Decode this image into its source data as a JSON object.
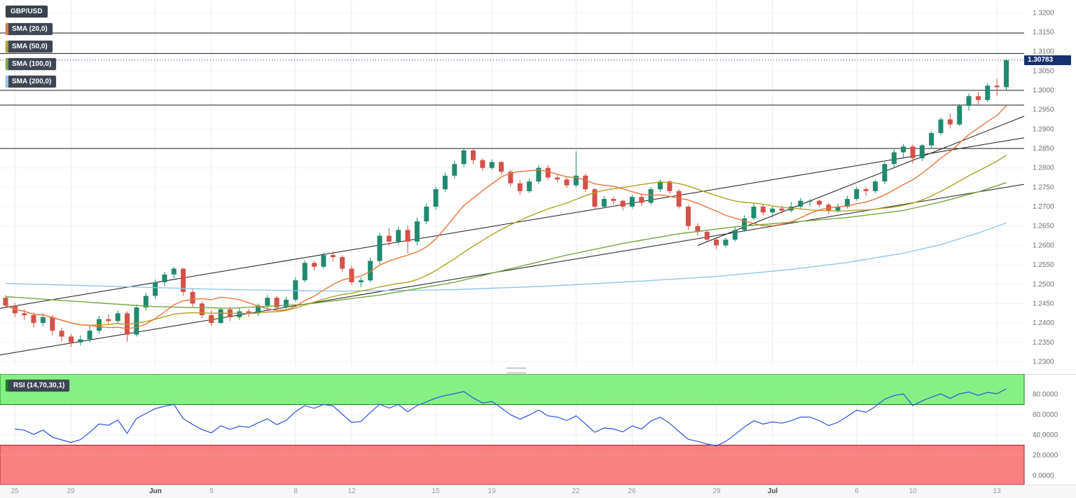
{
  "legend": {
    "symbol": "GBP/USD",
    "smas": [
      {
        "label": "SMA (20,0)",
        "color_key": "sma20"
      },
      {
        "label": "SMA (50,0)",
        "color_key": "sma50"
      },
      {
        "label": "SMA (100,0)",
        "color_key": "sma100"
      },
      {
        "label": "SMA (200,0)",
        "color_key": "sma200"
      }
    ],
    "rsi_label": "RSI (14,70,30,1)"
  },
  "colors": {
    "up": "#1f8a70",
    "down": "#d6504a",
    "sma20": "#e8763a",
    "sma50": "#b3a021",
    "sma100": "#71a83c",
    "sma200": "#8ec7ee",
    "rsi": "#2a52d8",
    "trendline": "#1a1a1a",
    "grid_h": "#f3f3f3",
    "grid_v": "#ebebeb",
    "axis_text": "#6e6e6e",
    "price_tag_bg": "#16316e",
    "band_green": "#70ee70",
    "band_green_border": "#118a11",
    "band_red": "#f96b6b",
    "band_red_border": "#b01d1d",
    "rsi_level_dots": "#c0c0c0"
  },
  "chart_data": [
    {
      "type": "candlestick",
      "title": "GBP/USD",
      "last_price": 1.30783,
      "last_price_label": "1.30783",
      "y_axis": {
        "max": 1.3233,
        "min": 1.229,
        "ticks": [
          "1.3200",
          "1.3150",
          "1.3100",
          "1.3050",
          "1.3000",
          "1.2950",
          "1.2900",
          "1.2850",
          "1.2800",
          "1.2750",
          "1.2700",
          "1.2650",
          "1.2600",
          "1.2550",
          "1.2500",
          "1.2450",
          "1.2400",
          "1.2350",
          "1.2300"
        ]
      },
      "x_labels": [
        {
          "label": "25",
          "index": 1
        },
        {
          "label": "29",
          "index": 7
        },
        {
          "label": "Jun",
          "index": 16,
          "bold": true
        },
        {
          "label": "5",
          "index": 22
        },
        {
          "label": "8",
          "index": 31
        },
        {
          "label": "12",
          "index": 37
        },
        {
          "label": "15",
          "index": 46
        },
        {
          "label": "19",
          "index": 52
        },
        {
          "label": "22",
          "index": 61
        },
        {
          "label": "26",
          "index": 67
        },
        {
          "label": "29",
          "index": 76
        },
        {
          "label": "Jul",
          "index": 82,
          "bold": true
        },
        {
          "label": "6",
          "index": 91
        },
        {
          "label": "10",
          "index": 97
        },
        {
          "label": "13",
          "index": 106
        }
      ],
      "candles": [
        [
          1.2465,
          1.2472,
          1.2438,
          1.2445
        ],
        [
          1.2445,
          1.2452,
          1.2415,
          1.2425
        ],
        [
          1.2425,
          1.2435,
          1.2408,
          1.242
        ],
        [
          1.242,
          1.2428,
          1.2388,
          1.24
        ],
        [
          1.24,
          1.2425,
          1.2392,
          1.2415
        ],
        [
          1.2415,
          1.242,
          1.2368,
          1.238
        ],
        [
          1.238,
          1.2388,
          1.2352,
          1.2365
        ],
        [
          1.2365,
          1.2372,
          1.2338,
          1.235
        ],
        [
          1.235,
          1.2368,
          1.2342,
          1.2358
        ],
        [
          1.2358,
          1.2392,
          1.235,
          1.238
        ],
        [
          1.238,
          1.2418,
          1.2372,
          1.241
        ],
        [
          1.241,
          1.2422,
          1.2395,
          1.2405
        ],
        [
          1.2405,
          1.2432,
          1.2398,
          1.2425
        ],
        [
          1.2425,
          1.243,
          1.2352,
          1.237
        ],
        [
          1.237,
          1.2448,
          1.2365,
          1.244
        ],
        [
          1.244,
          1.2478,
          1.2432,
          1.247
        ],
        [
          1.247,
          1.2512,
          1.2462,
          1.2505
        ],
        [
          1.2505,
          1.2532,
          1.2495,
          1.2525
        ],
        [
          1.2525,
          1.2545,
          1.2515,
          1.254
        ],
        [
          1.254,
          1.2542,
          1.247,
          1.248
        ],
        [
          1.248,
          1.2488,
          1.2442,
          1.245
        ],
        [
          1.245,
          1.2455,
          1.2412,
          1.242
        ],
        [
          1.242,
          1.2432,
          1.2392,
          1.24
        ],
        [
          1.24,
          1.244,
          1.2398,
          1.2435
        ],
        [
          1.2435,
          1.2442,
          1.2405,
          1.2415
        ],
        [
          1.2415,
          1.2438,
          1.2408,
          1.243
        ],
        [
          1.243,
          1.2436,
          1.2415,
          1.2425
        ],
        [
          1.2425,
          1.245,
          1.2418,
          1.2445
        ],
        [
          1.2445,
          1.2472,
          1.2438,
          1.2465
        ],
        [
          1.2465,
          1.247,
          1.2432,
          1.244
        ],
        [
          1.244,
          1.2468,
          1.2435,
          1.246
        ],
        [
          1.246,
          1.2518,
          1.2455,
          1.251
        ],
        [
          1.251,
          1.2562,
          1.2505,
          1.2555
        ],
        [
          1.2555,
          1.256,
          1.2535,
          1.2545
        ],
        [
          1.2545,
          1.2582,
          1.254,
          1.2575
        ],
        [
          1.2575,
          1.2585,
          1.2558,
          1.257
        ],
        [
          1.257,
          1.2575,
          1.2532,
          1.254
        ],
        [
          1.254,
          1.2548,
          1.2498,
          1.2505
        ],
        [
          1.2505,
          1.2518,
          1.2492,
          1.251
        ],
        [
          1.251,
          1.2568,
          1.2505,
          1.256
        ],
        [
          1.256,
          1.2632,
          1.2552,
          1.2625
        ],
        [
          1.2625,
          1.2645,
          1.2598,
          1.261
        ],
        [
          1.261,
          1.2648,
          1.2602,
          1.264
        ],
        [
          1.264,
          1.2652,
          1.258,
          1.261
        ],
        [
          1.261,
          1.2672,
          1.26,
          1.2662
        ],
        [
          1.2662,
          1.2708,
          1.2655,
          1.27
        ],
        [
          1.27,
          1.2752,
          1.2692,
          1.2745
        ],
        [
          1.2745,
          1.2788,
          1.2738,
          1.278
        ],
        [
          1.278,
          1.2818,
          1.2772,
          1.281
        ],
        [
          1.281,
          1.285,
          1.2802,
          1.2845
        ],
        [
          1.2845,
          1.2848,
          1.281,
          1.282
        ],
        [
          1.282,
          1.2825,
          1.2792,
          1.28
        ],
        [
          1.28,
          1.2822,
          1.2795,
          1.2815
        ],
        [
          1.2815,
          1.2818,
          1.2782,
          1.279
        ],
        [
          1.279,
          1.2795,
          1.2752,
          1.276
        ],
        [
          1.276,
          1.2768,
          1.273,
          1.274
        ],
        [
          1.274,
          1.2772,
          1.2735,
          1.2765
        ],
        [
          1.2765,
          1.2808,
          1.2758,
          1.28
        ],
        [
          1.28,
          1.2808,
          1.2768,
          1.2775
        ],
        [
          1.2775,
          1.2785,
          1.2762,
          1.277
        ],
        [
          1.277,
          1.2775,
          1.2748,
          1.2755
        ],
        [
          1.2755,
          1.2843,
          1.275,
          1.278
        ],
        [
          1.278,
          1.2785,
          1.2738,
          1.2745
        ],
        [
          1.2745,
          1.2748,
          1.2692,
          1.27
        ],
        [
          1.27,
          1.2728,
          1.2695,
          1.272
        ],
        [
          1.272,
          1.2726,
          1.2705,
          1.2715
        ],
        [
          1.2715,
          1.2718,
          1.269,
          1.27
        ],
        [
          1.27,
          1.273,
          1.2695,
          1.2725
        ],
        [
          1.2725,
          1.2732,
          1.2702,
          1.271
        ],
        [
          1.271,
          1.275,
          1.2705,
          1.2745
        ],
        [
          1.2745,
          1.277,
          1.2738,
          1.2765
        ],
        [
          1.2765,
          1.2768,
          1.2732,
          1.274
        ],
        [
          1.274,
          1.2745,
          1.2695,
          1.27
        ],
        [
          1.27,
          1.2705,
          1.264,
          1.265
        ],
        [
          1.265,
          1.2658,
          1.2625,
          1.2635
        ],
        [
          1.2635,
          1.264,
          1.2608,
          1.2615
        ],
        [
          1.2615,
          1.2622,
          1.259,
          1.26
        ],
        [
          1.26,
          1.262,
          1.2595,
          1.2615
        ],
        [
          1.2615,
          1.2648,
          1.261,
          1.264
        ],
        [
          1.264,
          1.2678,
          1.2635,
          1.267
        ],
        [
          1.267,
          1.2708,
          1.2665,
          1.27
        ],
        [
          1.27,
          1.2705,
          1.2678,
          1.2685
        ],
        [
          1.2685,
          1.27,
          1.2672,
          1.2695
        ],
        [
          1.2695,
          1.2702,
          1.2682,
          1.269
        ],
        [
          1.269,
          1.2712,
          1.2685,
          1.27
        ],
        [
          1.27,
          1.2722,
          1.2695,
          1.2715
        ],
        [
          1.2715,
          1.272,
          1.2702,
          1.2715
        ],
        [
          1.2715,
          1.2718,
          1.2698,
          1.2705
        ],
        [
          1.2705,
          1.271,
          1.2682,
          1.269
        ],
        [
          1.269,
          1.2708,
          1.2685,
          1.27
        ],
        [
          1.27,
          1.2728,
          1.2695,
          1.272
        ],
        [
          1.272,
          1.2752,
          1.2715,
          1.2745
        ],
        [
          1.2745,
          1.275,
          1.2728,
          1.274
        ],
        [
          1.274,
          1.277,
          1.2735,
          1.2765
        ],
        [
          1.2765,
          1.2815,
          1.2758,
          1.281
        ],
        [
          1.281,
          1.2848,
          1.2802,
          1.284
        ],
        [
          1.284,
          1.2862,
          1.2828,
          1.2855
        ],
        [
          1.2855,
          1.286,
          1.2812,
          1.2825
        ],
        [
          1.2825,
          1.2862,
          1.2818,
          1.2858
        ],
        [
          1.2858,
          1.2895,
          1.2852,
          1.289
        ],
        [
          1.289,
          1.293,
          1.2885,
          1.2925
        ],
        [
          1.2925,
          1.294,
          1.2902,
          1.2912
        ],
        [
          1.2912,
          1.2965,
          1.2908,
          1.296
        ],
        [
          1.296,
          1.2992,
          1.2948,
          1.2985
        ],
        [
          1.2985,
          1.2995,
          1.2962,
          1.2975
        ],
        [
          1.2975,
          1.3018,
          1.297,
          1.3012
        ],
        [
          1.3012,
          1.303,
          1.2985,
          1.3008
        ],
        [
          1.3008,
          1.308,
          1.3,
          1.3078
        ]
      ],
      "overlays": [
        {
          "name": "SMA (20,0)",
          "mode": "computed",
          "render_window": 10,
          "color_key": "sma20"
        },
        {
          "name": "SMA (50,0)",
          "mode": "computed",
          "render_window": 25,
          "color_key": "sma50"
        },
        {
          "name": "SMA (100,0)",
          "mode": "keypoints",
          "color_key": "sma100",
          "points": [
            [
              0,
              1.2468
            ],
            [
              8,
              1.2455
            ],
            [
              16,
              1.2442
            ],
            [
              24,
              1.2438
            ],
            [
              32,
              1.2448
            ],
            [
              40,
              1.2472
            ],
            [
              48,
              1.2505
            ],
            [
              54,
              1.254
            ],
            [
              60,
              1.2575
            ],
            [
              66,
              1.2605
            ],
            [
              72,
              1.263
            ],
            [
              78,
              1.2648
            ],
            [
              84,
              1.266
            ],
            [
              90,
              1.2672
            ],
            [
              96,
              1.269
            ],
            [
              100,
              1.2712
            ],
            [
              104,
              1.2738
            ],
            [
              107,
              1.2762
            ]
          ]
        },
        {
          "name": "SMA (200,0)",
          "mode": "keypoints",
          "color_key": "sma200",
          "points": [
            [
              0,
              1.2502
            ],
            [
              12,
              1.2494
            ],
            [
              24,
              1.2486
            ],
            [
              36,
              1.2482
            ],
            [
              48,
              1.2486
            ],
            [
              58,
              1.2495
            ],
            [
              68,
              1.2508
            ],
            [
              76,
              1.252
            ],
            [
              84,
              1.2538
            ],
            [
              90,
              1.2556
            ],
            [
              96,
              1.258
            ],
            [
              100,
              1.2602
            ],
            [
              104,
              1.2632
            ],
            [
              107,
              1.2658
            ]
          ]
        }
      ],
      "lines": {
        "horizontal": [
          1.3148,
          1.3095,
          1.3,
          1.2962,
          1.285
        ],
        "diagonal": [
          {
            "from": [
              0,
              1.244
            ],
            "to": [
              107,
              1.287
            ]
          },
          {
            "from": [
              0,
              1.232
            ],
            "to": [
              107,
              1.275
            ]
          },
          {
            "from": [
              74,
              1.26
            ],
            "to": [
              107,
              1.2915
            ]
          }
        ]
      }
    },
    {
      "type": "line",
      "name": "RSI (14,70,30,1)",
      "derived_from": "candles",
      "render_period": 10,
      "overbought": 70,
      "oversold": 30,
      "range": [
        0,
        100
      ],
      "line_color_key": "rsi",
      "ticks": [
        {
          "label": "80.0000",
          "value": 80
        },
        {
          "label": "60.0000",
          "value": 60
        },
        {
          "label": "40.0000",
          "value": 40
        },
        {
          "label": "20.0000",
          "value": 20
        },
        {
          "label": "0.0000",
          "value": 0
        }
      ]
    }
  ]
}
